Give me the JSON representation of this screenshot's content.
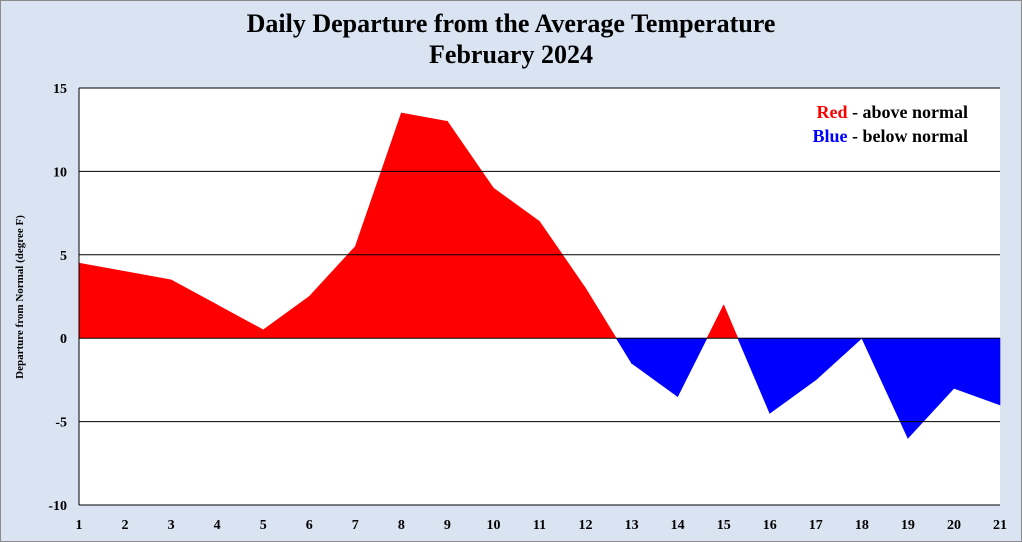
{
  "title": {
    "line1": "Daily Departure from the Average Temperature",
    "line2": "February 2024"
  },
  "legend": {
    "red_word": "Red",
    "red_text": " - above normal",
    "blue_word": "Blue",
    "blue_text": " - below normal"
  },
  "colors": {
    "above": "#ff0000",
    "below": "#0000ff",
    "grid": "#000000",
    "plot_bg": "#ffffff",
    "page_bg": "#d9e3f2"
  },
  "chart_data": {
    "type": "area",
    "title": "Daily Departure from the Average Temperature February 2024",
    "xlabel": "",
    "ylabel": "Departure from Normal (degree F)",
    "x": [
      1,
      2,
      3,
      4,
      5,
      6,
      7,
      8,
      9,
      10,
      11,
      12,
      13,
      14,
      15,
      16,
      17,
      18,
      19,
      20,
      21
    ],
    "values": [
      4.5,
      4.0,
      3.5,
      2.0,
      0.5,
      2.5,
      5.5,
      13.5,
      13.0,
      9.0,
      7.0,
      3.0,
      -1.5,
      -3.5,
      2.0,
      -4.5,
      -2.5,
      0.0,
      -6.0,
      -3.0,
      -4.0
    ],
    "xlim": [
      1,
      21
    ],
    "ylim": [
      -10,
      15
    ],
    "yticks": [
      -10,
      -5,
      0,
      5,
      10,
      15
    ],
    "xticks": [
      1,
      2,
      3,
      4,
      5,
      6,
      7,
      8,
      9,
      10,
      11,
      12,
      13,
      14,
      15,
      16,
      17,
      18,
      19,
      20,
      21
    ],
    "grid": true,
    "legend_position": "top-right"
  }
}
